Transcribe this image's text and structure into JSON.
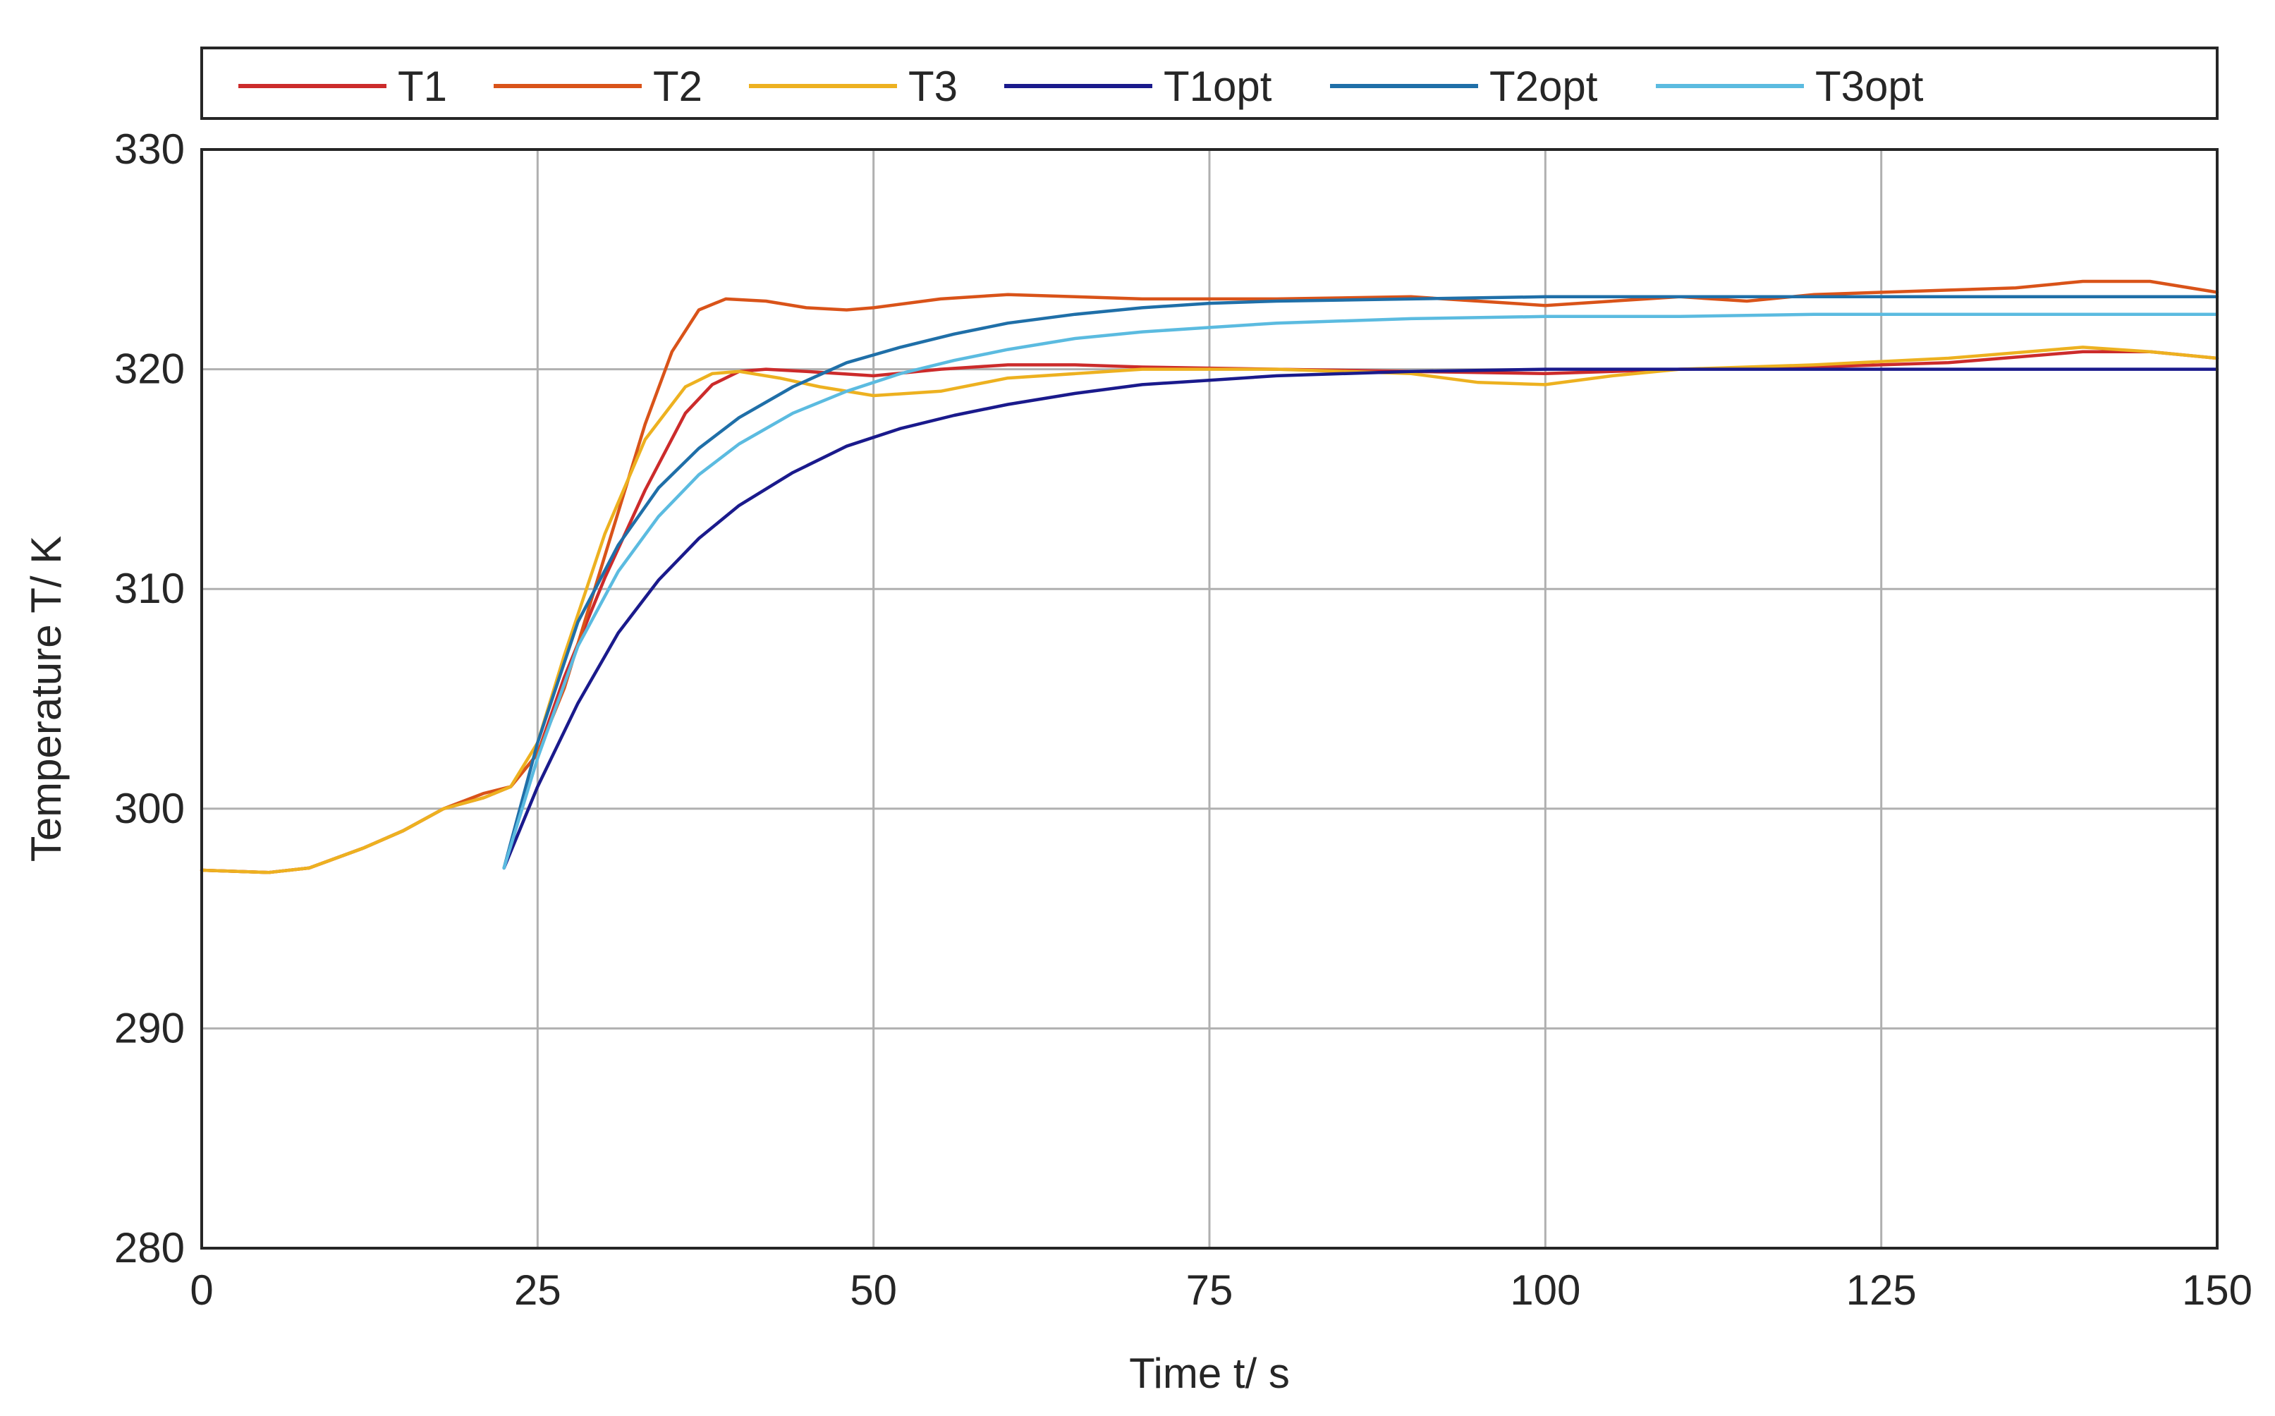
{
  "chart_data": {
    "type": "line",
    "title": "",
    "xlabel": "Time t/ s",
    "ylabel": "Temperature T/ K",
    "xlim": [
      0,
      150
    ],
    "ylim": [
      280,
      330
    ],
    "xticks": [
      0,
      25,
      50,
      75,
      100,
      125,
      150
    ],
    "yticks": [
      280,
      290,
      300,
      310,
      320,
      330
    ],
    "xtick_labels": [
      "0",
      "25",
      "50",
      "75",
      "100",
      "125",
      "150"
    ],
    "ytick_labels": [
      "280",
      "290",
      "300",
      "310",
      "320",
      "330"
    ],
    "grid": true,
    "legend_position": "top, horizontal, outside plot",
    "series": [
      {
        "name": "T1",
        "color": "#cc2b2b",
        "x": [
          0,
          5,
          8,
          12,
          15,
          18,
          21,
          23,
          25,
          27,
          30,
          33,
          36,
          38,
          40,
          42,
          45,
          50,
          55,
          60,
          65,
          70,
          80,
          90,
          100,
          110,
          120,
          130,
          140,
          145,
          150
        ],
        "y": [
          297.2,
          297.1,
          297.3,
          298.2,
          299.0,
          300.0,
          300.5,
          301.0,
          302.5,
          306.0,
          310.5,
          314.5,
          318.0,
          319.3,
          319.9,
          320.0,
          319.9,
          319.7,
          320.0,
          320.2,
          320.2,
          320.1,
          320.0,
          319.9,
          319.8,
          320.0,
          320.1,
          320.3,
          320.8,
          320.8,
          320.5
        ]
      },
      {
        "name": "T2",
        "color": "#d95319",
        "x": [
          0,
          5,
          8,
          12,
          15,
          18,
          21,
          23,
          25,
          27,
          29,
          31,
          33,
          35,
          37,
          39,
          42,
          45,
          48,
          50,
          55,
          60,
          65,
          70,
          80,
          90,
          100,
          110,
          115,
          120,
          125,
          130,
          135,
          140,
          145,
          150
        ],
        "y": [
          297.2,
          297.1,
          297.3,
          298.2,
          299.0,
          300.0,
          300.7,
          301.0,
          302.5,
          305.5,
          309.5,
          313.5,
          317.5,
          320.8,
          322.7,
          323.2,
          323.1,
          322.8,
          322.7,
          322.8,
          323.2,
          323.4,
          323.3,
          323.2,
          323.2,
          323.3,
          322.9,
          323.3,
          323.1,
          323.4,
          323.5,
          323.6,
          323.7,
          324.0,
          324.0,
          323.5
        ]
      },
      {
        "name": "T3",
        "color": "#edb120",
        "x": [
          0,
          5,
          8,
          12,
          15,
          18,
          21,
          23,
          25,
          27,
          30,
          33,
          36,
          38,
          40,
          43,
          46,
          50,
          55,
          60,
          70,
          80,
          90,
          95,
          100,
          105,
          110,
          120,
          130,
          140,
          145,
          150
        ],
        "y": [
          297.2,
          297.1,
          297.3,
          298.2,
          299.0,
          300.0,
          300.5,
          301.0,
          303.0,
          307.0,
          312.5,
          316.8,
          319.2,
          319.8,
          319.9,
          319.6,
          319.2,
          318.8,
          319.0,
          319.6,
          320.0,
          320.0,
          319.8,
          319.4,
          319.3,
          319.7,
          320.0,
          320.2,
          320.5,
          321.0,
          320.8,
          320.5
        ]
      },
      {
        "name": "T1opt",
        "color": "#1a1a8c",
        "x": [
          22.5,
          25,
          28,
          31,
          34,
          37,
          40,
          44,
          48,
          52,
          56,
          60,
          65,
          70,
          75,
          80,
          90,
          100,
          110,
          120,
          130,
          140,
          150
        ],
        "y": [
          297.3,
          301.0,
          304.8,
          308.0,
          310.4,
          312.3,
          313.8,
          315.3,
          316.5,
          317.3,
          317.9,
          318.4,
          318.9,
          319.3,
          319.5,
          319.7,
          319.9,
          320.0,
          320.0,
          320.0,
          320.0,
          320.0,
          320.0
        ]
      },
      {
        "name": "T2opt",
        "color": "#1f6fa8",
        "x": [
          22.5,
          25,
          28,
          31,
          34,
          37,
          40,
          44,
          48,
          52,
          56,
          60,
          65,
          70,
          75,
          80,
          90,
          100,
          110,
          120,
          130,
          140,
          150
        ],
        "y": [
          297.3,
          303.0,
          308.5,
          312.0,
          314.6,
          316.4,
          317.8,
          319.2,
          320.3,
          321.0,
          321.6,
          322.1,
          322.5,
          322.8,
          323.0,
          323.1,
          323.2,
          323.3,
          323.3,
          323.3,
          323.3,
          323.3,
          323.3
        ]
      },
      {
        "name": "T3opt",
        "color": "#5bbbe0",
        "x": [
          22.5,
          25,
          28,
          31,
          34,
          37,
          40,
          44,
          48,
          52,
          56,
          60,
          65,
          70,
          75,
          80,
          90,
          100,
          110,
          120,
          130,
          140,
          150
        ],
        "y": [
          297.3,
          302.3,
          307.4,
          310.8,
          313.3,
          315.2,
          316.6,
          318.0,
          319.0,
          319.8,
          320.4,
          320.9,
          321.4,
          321.7,
          321.9,
          322.1,
          322.3,
          322.4,
          322.4,
          322.5,
          322.5,
          322.5,
          322.5
        ]
      }
    ]
  }
}
